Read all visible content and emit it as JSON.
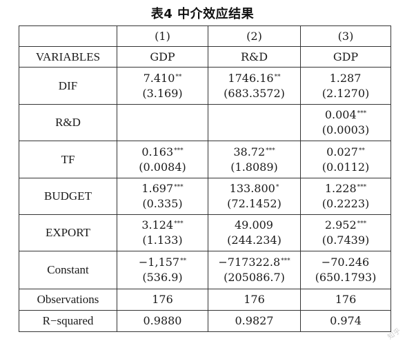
{
  "caption": "表4  中介效应结果",
  "table": {
    "column_numbers": [
      "(1)",
      "(2)",
      "(3)"
    ],
    "header": {
      "label": "VARIABLES",
      "columns": [
        "GDP",
        "R&D",
        "GDP"
      ]
    },
    "rows": [
      {
        "variable": "DIF",
        "cells": [
          {
            "coef": "7.410",
            "stars": "**",
            "se": "(3.169)"
          },
          {
            "coef": "1746.16",
            "stars": "**",
            "se": "(683.3572)"
          },
          {
            "coef": "1.287",
            "stars": "",
            "se": "(2.1270)"
          }
        ]
      },
      {
        "variable": "R&D",
        "cells": [
          {
            "coef": "",
            "stars": "",
            "se": ""
          },
          {
            "coef": "",
            "stars": "",
            "se": ""
          },
          {
            "coef": "0.004",
            "stars": "***",
            "se": "(0.0003)"
          }
        ]
      },
      {
        "variable": "TF",
        "cells": [
          {
            "coef": "0.163",
            "stars": "***",
            "se": "(0.0084)"
          },
          {
            "coef": "38.72",
            "stars": "***",
            "se": "(1.8089)"
          },
          {
            "coef": "0.027",
            "stars": "**",
            "se": "(0.0112)"
          }
        ]
      },
      {
        "variable": "BUDGET",
        "cells": [
          {
            "coef": "1.697",
            "stars": "***",
            "se": "(0.335)"
          },
          {
            "coef": "133.800",
            "stars": "*",
            "se": "(72.1452)"
          },
          {
            "coef": "1.228",
            "stars": "***",
            "se": "(0.2223)"
          }
        ]
      },
      {
        "variable": "EXPORT",
        "cells": [
          {
            "coef": "3.124",
            "stars": "***",
            "se": "(1.133)"
          },
          {
            "coef": "49.009",
            "stars": "",
            "se": "(244.234)"
          },
          {
            "coef": "2.952",
            "stars": "***",
            "se": "(0.7439)"
          }
        ]
      },
      {
        "variable": "Constant",
        "cells": [
          {
            "coef": "−1,157",
            "stars": "**",
            "se": "(536.9)"
          },
          {
            "coef": "−717322.8",
            "stars": "***",
            "se": "(205086.7)"
          },
          {
            "coef": "−70.246",
            "stars": "",
            "se": "(650.1793)"
          }
        ]
      }
    ],
    "observations": {
      "label": "Observations",
      "values": [
        "176",
        "176",
        "176"
      ]
    },
    "r_squared": {
      "label": "R−squared",
      "values": [
        "0.9880",
        "0.9827",
        "0.974"
      ]
    }
  },
  "watermark": "知乎"
}
